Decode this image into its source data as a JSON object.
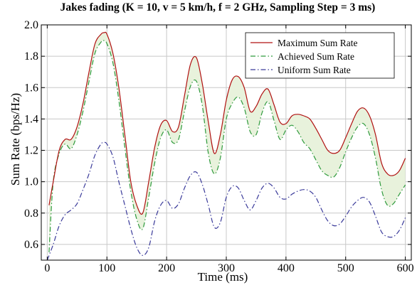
{
  "chart_data": {
    "type": "line",
    "title": "Jakes fading (K = 10, v = 5 km/h, f = 2 GHz, Sampling Step = 3 ms)",
    "xlabel": "Time (ms)",
    "ylabel": "Sum Rate (bps/Hz)",
    "xlim": [
      -10,
      610
    ],
    "ylim": [
      0.5,
      2.0
    ],
    "xticks": [
      0,
      100,
      200,
      300,
      400,
      500,
      600
    ],
    "yticks": [
      0.6,
      0.8,
      1.0,
      1.2,
      1.4,
      1.6,
      1.8,
      2.0
    ],
    "xtick_labels": [
      "0",
      "100",
      "200",
      "300",
      "400",
      "500",
      "600"
    ],
    "ytick_labels": [
      "0.6",
      "0.8",
      "1.0",
      "1.2",
      "1.4",
      "1.6",
      "1.8",
      "2.0"
    ],
    "grid": true,
    "legend_position": "top-right",
    "fill_between": "Maximum Sum Rate and Achieved Sum Rate",
    "fill_color": "#e8f2dc",
    "series": [
      {
        "name": "Maximum Sum Rate",
        "color": "#b01010",
        "style": "solid",
        "x": [
          3,
          10,
          20,
          30,
          40,
          50,
          60,
          70,
          80,
          90,
          95,
          100,
          110,
          120,
          130,
          140,
          150,
          160,
          170,
          180,
          190,
          200,
          210,
          220,
          230,
          240,
          250,
          260,
          270,
          280,
          290,
          300,
          310,
          320,
          330,
          340,
          350,
          360,
          370,
          380,
          390,
          400,
          410,
          420,
          430,
          440,
          450,
          460,
          470,
          480,
          490,
          500,
          510,
          520,
          530,
          540,
          550,
          560,
          570,
          580,
          590,
          600
        ],
        "y": [
          0.85,
          1.0,
          1.2,
          1.27,
          1.27,
          1.35,
          1.5,
          1.7,
          1.88,
          1.94,
          1.95,
          1.94,
          1.82,
          1.6,
          1.3,
          1.0,
          0.85,
          0.8,
          1.0,
          1.22,
          1.36,
          1.39,
          1.32,
          1.35,
          1.55,
          1.75,
          1.79,
          1.62,
          1.38,
          1.18,
          1.3,
          1.52,
          1.65,
          1.67,
          1.6,
          1.45,
          1.48,
          1.56,
          1.59,
          1.49,
          1.38,
          1.37,
          1.42,
          1.43,
          1.42,
          1.4,
          1.34,
          1.27,
          1.2,
          1.18,
          1.2,
          1.28,
          1.37,
          1.45,
          1.47,
          1.42,
          1.3,
          1.12,
          1.05,
          1.04,
          1.07,
          1.15
        ]
      },
      {
        "name": "Achieved Sum Rate",
        "color": "#2e9a3c",
        "style": "dashdot",
        "x": [
          3,
          10,
          20,
          30,
          40,
          50,
          60,
          70,
          80,
          90,
          95,
          100,
          110,
          120,
          130,
          140,
          150,
          160,
          170,
          180,
          190,
          200,
          210,
          220,
          230,
          240,
          250,
          260,
          270,
          280,
          290,
          300,
          310,
          320,
          330,
          340,
          350,
          360,
          370,
          380,
          390,
          400,
          410,
          420,
          430,
          440,
          450,
          460,
          470,
          480,
          490,
          500,
          510,
          520,
          530,
          540,
          550,
          560,
          570,
          580,
          590,
          600
        ],
        "y": [
          0.55,
          1.0,
          1.18,
          1.24,
          1.21,
          1.3,
          1.45,
          1.64,
          1.82,
          1.89,
          1.9,
          1.88,
          1.76,
          1.52,
          1.22,
          0.94,
          0.76,
          0.7,
          0.9,
          1.12,
          1.28,
          1.33,
          1.25,
          1.27,
          1.45,
          1.61,
          1.64,
          1.48,
          1.18,
          1.05,
          1.15,
          1.4,
          1.5,
          1.54,
          1.47,
          1.32,
          1.3,
          1.44,
          1.51,
          1.39,
          1.27,
          1.33,
          1.36,
          1.32,
          1.25,
          1.21,
          1.14,
          1.07,
          1.04,
          1.03,
          1.09,
          1.19,
          1.28,
          1.35,
          1.37,
          1.3,
          1.15,
          0.95,
          0.85,
          0.86,
          0.92,
          0.98
        ]
      },
      {
        "name": "Uniform Sum Rate",
        "color": "#3a3a9a",
        "style": "dashdot",
        "x": [
          0,
          10,
          20,
          30,
          40,
          50,
          60,
          70,
          80,
          90,
          95,
          100,
          110,
          120,
          130,
          140,
          150,
          160,
          170,
          180,
          190,
          200,
          210,
          220,
          230,
          240,
          250,
          260,
          270,
          280,
          290,
          300,
          310,
          320,
          330,
          340,
          350,
          360,
          370,
          380,
          390,
          400,
          410,
          420,
          430,
          440,
          450,
          460,
          470,
          480,
          490,
          500,
          510,
          520,
          530,
          540,
          550,
          560,
          570,
          580,
          590,
          600
        ],
        "y": [
          0.5,
          0.6,
          0.72,
          0.79,
          0.82,
          0.86,
          0.95,
          1.05,
          1.17,
          1.24,
          1.25,
          1.24,
          1.16,
          1.0,
          0.85,
          0.7,
          0.58,
          0.53,
          0.58,
          0.75,
          0.85,
          0.88,
          0.83,
          0.86,
          0.96,
          1.04,
          1.06,
          0.98,
          0.85,
          0.71,
          0.74,
          0.9,
          0.97,
          0.96,
          0.88,
          0.82,
          0.88,
          0.96,
          0.99,
          0.96,
          0.9,
          0.89,
          0.92,
          0.94,
          0.95,
          0.94,
          0.9,
          0.82,
          0.75,
          0.72,
          0.73,
          0.78,
          0.84,
          0.88,
          0.9,
          0.87,
          0.78,
          0.68,
          0.65,
          0.65,
          0.69,
          0.77
        ]
      }
    ]
  }
}
